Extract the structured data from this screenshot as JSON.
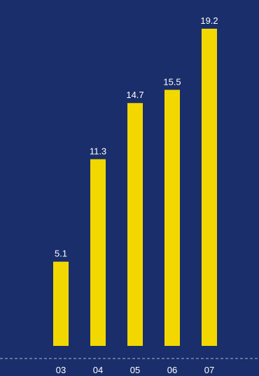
{
  "chart_data": {
    "type": "bar",
    "categories": [
      "03",
      "04",
      "05",
      "06",
      "07"
    ],
    "values": [
      5.1,
      11.3,
      14.7,
      15.5,
      19.2
    ],
    "value_labels": [
      "5.1",
      "11.3",
      "14.7",
      "15.5",
      "19.2"
    ],
    "title": "",
    "xlabel": "",
    "ylabel": "",
    "ylim": [
      0,
      19.2
    ],
    "grid": false,
    "colors": {
      "background": "#1a2e6b",
      "bar": "#f2d800",
      "text": "#ffffff",
      "baseline": "#aab4d4"
    }
  }
}
